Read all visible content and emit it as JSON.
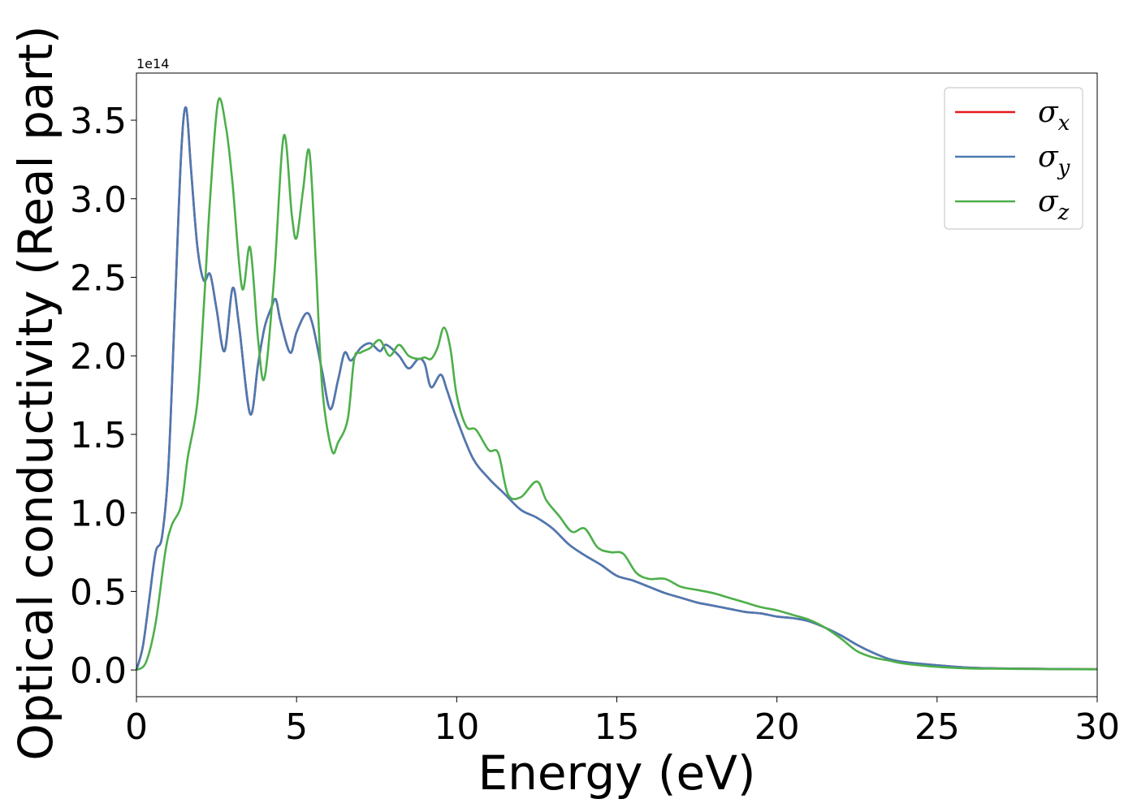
{
  "chart_data": {
    "type": "line",
    "title": "",
    "xlabel": "Energy (eV)",
    "ylabel": "Optical conductivity (Real part)",
    "y_offset_label": "1e14",
    "y_scale_factor": 100000000000000.0,
    "xlim": [
      0,
      30
    ],
    "ylim": [
      -0.17,
      3.8
    ],
    "xticks": [
      0,
      5,
      10,
      15,
      20,
      25,
      30
    ],
    "xtick_labels": [
      "0",
      "5",
      "10",
      "15",
      "20",
      "25",
      "30"
    ],
    "yticks": [
      0.0,
      0.5,
      1.0,
      1.5,
      2.0,
      2.5,
      3.0,
      3.5
    ],
    "ytick_labels": [
      "0.0",
      "0.5",
      "1.0",
      "1.5",
      "2.0",
      "2.5",
      "3.0",
      "3.5"
    ],
    "grid": false,
    "legend_position": "top-right",
    "series": [
      {
        "name": "σx",
        "label_base": "σ",
        "label_sub": "x",
        "color": "#e41a1c",
        "x": [
          0,
          0.2,
          0.4,
          0.6,
          0.8,
          1.0,
          1.2,
          1.4,
          1.55,
          1.7,
          1.9,
          2.1,
          2.3,
          2.5,
          2.75,
          3.0,
          3.2,
          3.55,
          3.8,
          4.0,
          4.2,
          4.35,
          4.5,
          4.8,
          5.0,
          5.3,
          5.5,
          5.8,
          6.05,
          6.3,
          6.5,
          6.7,
          7.0,
          7.3,
          7.6,
          7.8,
          8.2,
          8.5,
          8.8,
          9.0,
          9.2,
          9.5,
          9.7,
          10.0,
          10.5,
          11.0,
          11.5,
          12.0,
          12.5,
          13.0,
          13.5,
          14.0,
          14.5,
          15.0,
          15.5,
          16.0,
          16.5,
          17.0,
          17.5,
          18.0,
          18.5,
          19.0,
          19.5,
          20.0,
          20.5,
          21.0,
          21.5,
          22.0,
          22.5,
          23.0,
          23.5,
          24.0,
          25.0,
          26.0,
          27.0,
          28.0,
          29.0,
          30.0
        ],
        "values": [
          0.0,
          0.15,
          0.45,
          0.75,
          0.85,
          1.3,
          2.3,
          3.3,
          3.58,
          3.2,
          2.7,
          2.48,
          2.52,
          2.3,
          2.03,
          2.43,
          2.2,
          1.63,
          1.95,
          2.18,
          2.3,
          2.36,
          2.22,
          2.02,
          2.15,
          2.27,
          2.2,
          1.9,
          1.66,
          1.85,
          2.02,
          1.97,
          2.05,
          2.08,
          2.03,
          2.07,
          2.0,
          1.92,
          1.98,
          1.95,
          1.8,
          1.88,
          1.78,
          1.6,
          1.35,
          1.22,
          1.12,
          1.02,
          0.97,
          0.9,
          0.8,
          0.73,
          0.67,
          0.6,
          0.57,
          0.53,
          0.49,
          0.46,
          0.43,
          0.41,
          0.39,
          0.37,
          0.36,
          0.34,
          0.33,
          0.31,
          0.27,
          0.22,
          0.16,
          0.11,
          0.07,
          0.05,
          0.03,
          0.015,
          0.01,
          0.008,
          0.006,
          0.005
        ]
      },
      {
        "name": "σy",
        "label_base": "σ",
        "label_sub": "y",
        "color": "#4a7ab3",
        "x": [
          0,
          0.2,
          0.4,
          0.6,
          0.8,
          1.0,
          1.2,
          1.4,
          1.55,
          1.7,
          1.9,
          2.1,
          2.3,
          2.5,
          2.75,
          3.0,
          3.2,
          3.55,
          3.8,
          4.0,
          4.2,
          4.35,
          4.5,
          4.8,
          5.0,
          5.3,
          5.5,
          5.8,
          6.05,
          6.3,
          6.5,
          6.7,
          7.0,
          7.3,
          7.6,
          7.8,
          8.2,
          8.5,
          8.8,
          9.0,
          9.2,
          9.5,
          9.7,
          10.0,
          10.5,
          11.0,
          11.5,
          12.0,
          12.5,
          13.0,
          13.5,
          14.0,
          14.5,
          15.0,
          15.5,
          16.0,
          16.5,
          17.0,
          17.5,
          18.0,
          18.5,
          19.0,
          19.5,
          20.0,
          20.5,
          21.0,
          21.5,
          22.0,
          22.5,
          23.0,
          23.5,
          24.0,
          25.0,
          26.0,
          27.0,
          28.0,
          29.0,
          30.0
        ],
        "values": [
          0.0,
          0.15,
          0.45,
          0.75,
          0.85,
          1.3,
          2.3,
          3.3,
          3.58,
          3.2,
          2.7,
          2.48,
          2.52,
          2.3,
          2.03,
          2.43,
          2.2,
          1.63,
          1.95,
          2.18,
          2.3,
          2.36,
          2.22,
          2.02,
          2.15,
          2.27,
          2.2,
          1.9,
          1.66,
          1.85,
          2.02,
          1.97,
          2.05,
          2.08,
          2.03,
          2.07,
          2.0,
          1.92,
          1.98,
          1.95,
          1.8,
          1.88,
          1.78,
          1.6,
          1.35,
          1.22,
          1.12,
          1.02,
          0.97,
          0.9,
          0.8,
          0.73,
          0.67,
          0.6,
          0.57,
          0.53,
          0.49,
          0.46,
          0.43,
          0.41,
          0.39,
          0.37,
          0.36,
          0.34,
          0.33,
          0.31,
          0.27,
          0.22,
          0.16,
          0.11,
          0.07,
          0.05,
          0.03,
          0.015,
          0.01,
          0.008,
          0.006,
          0.005
        ]
      },
      {
        "name": "σz",
        "label_base": "σ",
        "label_sub": "z",
        "color": "#4daf4a",
        "x": [
          0,
          0.3,
          0.6,
          0.9,
          1.1,
          1.4,
          1.6,
          1.9,
          2.1,
          2.3,
          2.55,
          2.8,
          3.0,
          3.3,
          3.55,
          3.8,
          4.0,
          4.3,
          4.6,
          4.85,
          5.0,
          5.2,
          5.4,
          5.6,
          5.8,
          6.1,
          6.3,
          6.6,
          6.8,
          7.0,
          7.3,
          7.6,
          7.9,
          8.2,
          8.5,
          8.8,
          9.0,
          9.2,
          9.4,
          9.6,
          9.8,
          10.0,
          10.3,
          10.6,
          11.0,
          11.3,
          11.6,
          12.0,
          12.5,
          12.8,
          13.2,
          13.6,
          14.0,
          14.4,
          14.8,
          15.2,
          15.6,
          16.0,
          16.5,
          17.0,
          17.5,
          18.0,
          18.5,
          19.0,
          19.5,
          20.0,
          20.5,
          21.0,
          21.5,
          22.0,
          22.5,
          23.0,
          23.5,
          24.0,
          25.0,
          26.0,
          27.0,
          28.0,
          29.0,
          30.0
        ],
        "values": [
          0.0,
          0.05,
          0.3,
          0.75,
          0.92,
          1.05,
          1.35,
          1.7,
          2.3,
          3.0,
          3.62,
          3.45,
          3.1,
          2.43,
          2.69,
          2.1,
          1.86,
          2.5,
          3.4,
          2.9,
          2.75,
          3.05,
          3.3,
          2.6,
          1.8,
          1.4,
          1.45,
          1.6,
          1.98,
          2.02,
          2.05,
          2.1,
          2.0,
          2.07,
          2.0,
          1.98,
          1.99,
          1.98,
          2.05,
          2.18,
          2.05,
          1.75,
          1.55,
          1.53,
          1.4,
          1.38,
          1.12,
          1.1,
          1.2,
          1.08,
          0.98,
          0.88,
          0.9,
          0.78,
          0.75,
          0.74,
          0.62,
          0.58,
          0.58,
          0.53,
          0.51,
          0.49,
          0.46,
          0.43,
          0.4,
          0.38,
          0.35,
          0.32,
          0.27,
          0.2,
          0.12,
          0.08,
          0.06,
          0.04,
          0.02,
          0.01,
          0.008,
          0.006,
          0.005,
          0.004
        ]
      }
    ]
  }
}
